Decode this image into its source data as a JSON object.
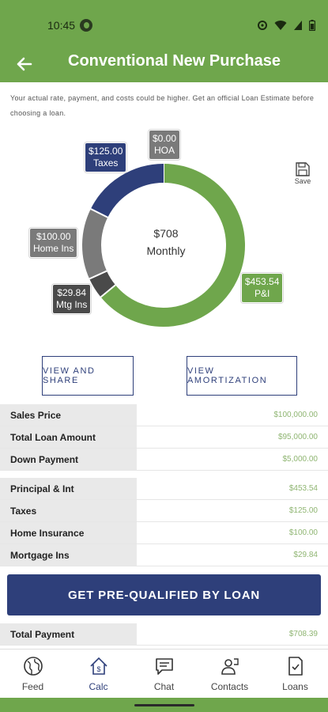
{
  "status": {
    "time": "10:45"
  },
  "header": {
    "title": "Conventional New Purchase"
  },
  "disclaimer": "Your actual rate, payment, and costs could be higher. Get an official Loan Estimate before choosing a loan.",
  "save": {
    "label": "Save"
  },
  "chart_data": {
    "type": "pie",
    "center_value": "$708",
    "center_label": "Monthly",
    "slices": [
      {
        "label": "P&I",
        "value_text": "$453.54",
        "value": 453.54,
        "color": "#6fa64c"
      },
      {
        "label": "Mtg Ins",
        "value_text": "$29.84",
        "value": 29.84,
        "color": "#4a4a4a"
      },
      {
        "label": "Home Ins",
        "value_text": "$100.00",
        "value": 100.0,
        "color": "#7a7a7a"
      },
      {
        "label": "Taxes",
        "value_text": "$125.00",
        "value": 125.0,
        "color": "#2e3f7a"
      },
      {
        "label": "HOA",
        "value_text": "$0.00",
        "value": 0.0,
        "color": "#7a7a7a"
      }
    ]
  },
  "buttons": {
    "view_share": "VIEW AND SHARE",
    "view_amortization": "VIEW AMORTIZATION"
  },
  "loan_table": [
    {
      "label": "Sales Price",
      "value": "$100,000.00"
    },
    {
      "label": "Total Loan Amount",
      "value": "$95,000.00"
    },
    {
      "label": "Down Payment",
      "value": "$5,000.00"
    }
  ],
  "payment_table": [
    {
      "label": "Principal & Int",
      "value": "$453.54"
    },
    {
      "label": "Taxes",
      "value": "$125.00"
    },
    {
      "label": "Home Insurance",
      "value": "$100.00"
    },
    {
      "label": "Mortgage Ins",
      "value": "$29.84"
    }
  ],
  "cta": {
    "label": "GET PRE-QUALIFIED BY LOAN"
  },
  "total": {
    "label": "Total Payment",
    "value": "$708.39"
  },
  "tabs": [
    {
      "label": "Feed",
      "icon": "globe-icon"
    },
    {
      "label": "Calc",
      "icon": "calculator-house-icon",
      "active": true
    },
    {
      "label": "Chat",
      "icon": "chat-icon"
    },
    {
      "label": "Contacts",
      "icon": "contacts-icon"
    },
    {
      "label": "Loans",
      "icon": "loans-icon"
    }
  ]
}
